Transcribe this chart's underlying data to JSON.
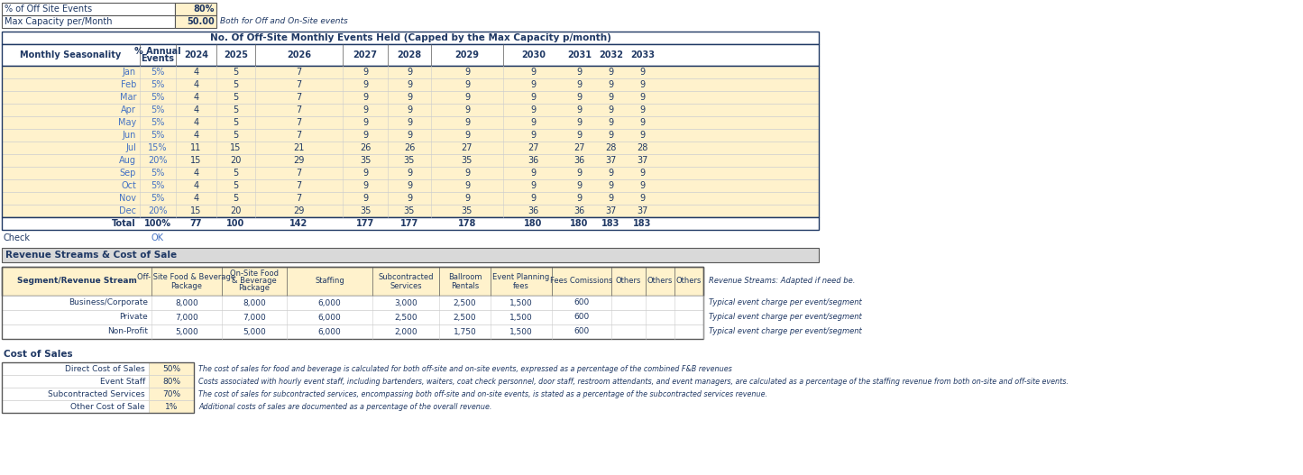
{
  "bg_color": "#FFFFFF",
  "peach_bg": "#FFF2CC",
  "blue_text": "#4472C4",
  "dark_text": "#1F3864",
  "orange_text": "#C55A11",
  "gray_bg": "#E8E8E8",
  "top_labels": [
    "% of Off Site Events",
    "Max Capacity per/Month"
  ],
  "top_values": [
    "80%",
    "50.00"
  ],
  "top_note": "Both for Off and On-Site events",
  "main_title": "No. Of Off-Site Monthly Events Held (Capped by the Max Capacity p/month)",
  "months": [
    "Jan",
    "Feb",
    "Mar",
    "Apr",
    "May",
    "Jun",
    "Jul",
    "Aug",
    "Sep",
    "Oct",
    "Nov",
    "Dec"
  ],
  "month_pct": [
    "5%",
    "5%",
    "5%",
    "5%",
    "5%",
    "5%",
    "15%",
    "20%",
    "5%",
    "5%",
    "5%",
    "20%"
  ],
  "year_labels": [
    "2024",
    "2025",
    "2026",
    "2027",
    "2028",
    "2029",
    "2030",
    "2031",
    "2032",
    "2033"
  ],
  "data_2024": [
    4,
    4,
    4,
    4,
    4,
    4,
    11,
    15,
    4,
    4,
    4,
    15
  ],
  "data_2025": [
    5,
    5,
    5,
    5,
    5,
    5,
    15,
    20,
    5,
    5,
    5,
    20
  ],
  "data_2026": [
    7,
    7,
    7,
    7,
    7,
    7,
    21,
    29,
    7,
    7,
    7,
    29
  ],
  "data_2027": [
    9,
    9,
    9,
    9,
    9,
    9,
    26,
    35,
    9,
    9,
    9,
    35
  ],
  "data_2028": [
    9,
    9,
    9,
    9,
    9,
    9,
    26,
    35,
    9,
    9,
    9,
    35
  ],
  "data_2029": [
    9,
    9,
    9,
    9,
    9,
    9,
    27,
    35,
    9,
    9,
    9,
    35
  ],
  "data_2030": [
    9,
    9,
    9,
    9,
    9,
    9,
    27,
    36,
    9,
    9,
    9,
    36
  ],
  "data_2031": [
    9,
    9,
    9,
    9,
    9,
    9,
    27,
    36,
    9,
    9,
    9,
    36
  ],
  "data_2032": [
    9,
    9,
    9,
    9,
    9,
    9,
    28,
    37,
    9,
    9,
    9,
    37
  ],
  "data_2033": [
    9,
    9,
    9,
    9,
    9,
    9,
    28,
    37,
    9,
    9,
    9,
    37
  ],
  "total_vals": [
    77,
    100,
    142,
    177,
    177,
    178,
    180,
    180,
    183,
    183
  ],
  "rev_title": "Revenue Streams & Cost of Sale",
  "seg_header": "Segment/Revenue Stream",
  "seg_col_headers": [
    "Off- Site Food & Beverage\nPackage",
    "On-Site Food\n& Beverage\nPackage",
    "Staffing",
    "Subcontracted\nServices",
    "Ballroom\nRentals",
    "Event Planning\nfees",
    "Fees Comissions",
    "Others",
    "Others",
    "Others"
  ],
  "segments": [
    "Business/Corporate",
    "Private",
    "Non-Profit"
  ],
  "seg_vals": [
    [
      8000,
      8000,
      6000,
      3000,
      2500,
      1500,
      600,
      "",
      "",
      ""
    ],
    [
      7000,
      7000,
      6000,
      2500,
      2500,
      1500,
      600,
      "",
      "",
      ""
    ],
    [
      5000,
      5000,
      6000,
      2000,
      1750,
      1500,
      600,
      "",
      "",
      ""
    ]
  ],
  "seg_notes": [
    "Typical event charge per event/segment",
    "Typical event charge per event/segment",
    "Typical event charge per event/segment"
  ],
  "cost_title": "Cost of Sales",
  "cost_items": [
    "Direct Cost of Sales",
    "Event Staff",
    "Subcontracted Services",
    "Other Cost of Sale"
  ],
  "cost_values": [
    "50%",
    "80%",
    "70%",
    "1%"
  ],
  "cost_notes": [
    "The cost of sales for food and beverage is calculated for both off-site and on-site events, expressed as a percentage of the combined F&B revenues",
    "Costs associated with hourly event staff, including bartenders, waiters, coat check personnel, door staff, restroom attendants, and event managers, are calculated as a percentage of the staffing revenue from both on-site and off-site events.",
    "The cost of sales for subcontracted services, encompassing both off-site and on-site events, is stated as a percentage of the subcontracted services revenue.",
    "Additional costs of sales are documented as a percentage of the overall revenue."
  ]
}
